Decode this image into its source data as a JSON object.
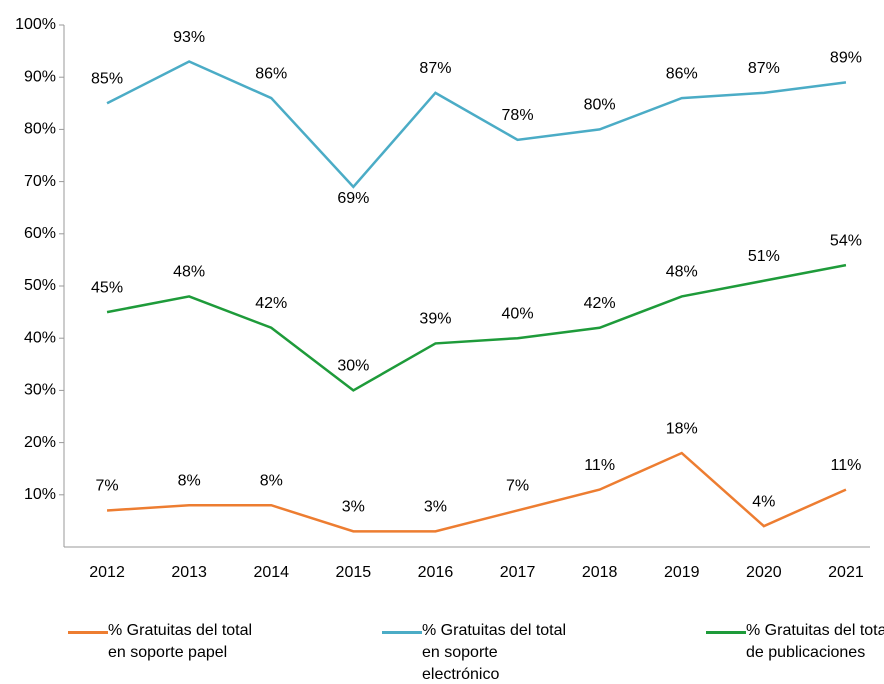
{
  "chart_data": {
    "type": "line",
    "categories": [
      "2012",
      "2013",
      "2014",
      "2015",
      "2016",
      "2017",
      "2018",
      "2019",
      "2020",
      "2021"
    ],
    "series": [
      {
        "name": "% Gratuitas del total en soporte papel",
        "color": "#ed7d31",
        "values": [
          7,
          8,
          8,
          3,
          3,
          7,
          11,
          18,
          4,
          11
        ],
        "value_labels": [
          "7%",
          "8%",
          "8%",
          "3%",
          "3%",
          "7%",
          "11%",
          "18%",
          "4%",
          "11%"
        ]
      },
      {
        "name": "% Gratuitas del total en soporte electrónico",
        "color": "#4bacc6",
        "values": [
          85,
          93,
          86,
          69,
          87,
          78,
          80,
          86,
          87,
          89
        ],
        "value_labels": [
          "85%",
          "93%",
          "86%",
          "69%",
          "87%",
          "78%",
          "80%",
          "86%",
          "87%",
          "89%"
        ]
      },
      {
        "name": "% Gratuitas del total de publicaciones",
        "color": "#1e9b3a",
        "values": [
          45,
          48,
          42,
          30,
          39,
          40,
          42,
          48,
          51,
          54
        ],
        "value_labels": [
          "45%",
          "48%",
          "42%",
          "30%",
          "39%",
          "40%",
          "42%",
          "48%",
          "51%",
          "54%"
        ]
      }
    ],
    "ylim": [
      0,
      100
    ],
    "yticks": [
      {
        "value": 10,
        "label": "10%"
      },
      {
        "value": 20,
        "label": "20%"
      },
      {
        "value": 30,
        "label": "30%"
      },
      {
        "value": 40,
        "label": "40%"
      },
      {
        "value": 50,
        "label": "50%"
      },
      {
        "value": 60,
        "label": "60%"
      },
      {
        "value": 70,
        "label": "70%"
      },
      {
        "value": 80,
        "label": "80%"
      },
      {
        "value": 90,
        "label": "90%"
      },
      {
        "value": 100,
        "label": "100%"
      }
    ],
    "grid": false,
    "legend": "bottom"
  }
}
